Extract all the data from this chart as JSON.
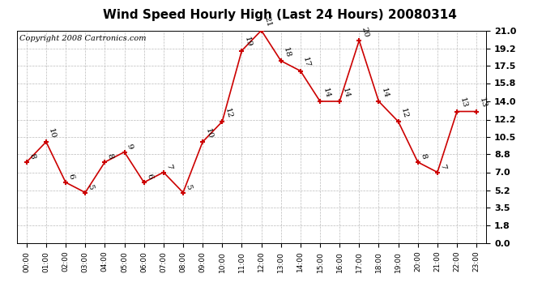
{
  "title": "Wind Speed Hourly High (Last 24 Hours) 20080314",
  "copyright": "Copyright 2008 Cartronics.com",
  "hours": [
    0,
    1,
    2,
    3,
    4,
    5,
    6,
    7,
    8,
    9,
    10,
    11,
    12,
    13,
    14,
    15,
    16,
    17,
    18,
    19,
    20,
    21,
    22,
    23
  ],
  "values": [
    8,
    10,
    6,
    5,
    8,
    9,
    6,
    7,
    5,
    10,
    12,
    19,
    21,
    18,
    17,
    14,
    14,
    20,
    14,
    12,
    8,
    7,
    13,
    13
  ],
  "x_labels": [
    "00:00",
    "01:00",
    "02:00",
    "03:00",
    "04:00",
    "05:00",
    "06:00",
    "07:00",
    "08:00",
    "09:00",
    "10:00",
    "11:00",
    "12:00",
    "13:00",
    "14:00",
    "15:00",
    "16:00",
    "17:00",
    "18:00",
    "19:00",
    "20:00",
    "21:00",
    "22:00",
    "23:00"
  ],
  "y_ticks": [
    0.0,
    1.8,
    3.5,
    5.2,
    7.0,
    8.8,
    10.5,
    12.2,
    14.0,
    15.8,
    17.5,
    19.2,
    21.0
  ],
  "y_tick_labels": [
    "0.0",
    "1.8",
    "3.5",
    "5.2",
    "7.0",
    "8.8",
    "10.5",
    "12.2",
    "14.0",
    "15.8",
    "17.5",
    "19.2",
    "21.0"
  ],
  "line_color": "#cc0000",
  "marker_color": "#cc0000",
  "bg_color": "#ffffff",
  "grid_color": "#bbbbbb",
  "title_fontsize": 11,
  "annotation_fontsize": 7.5,
  "copyright_fontsize": 7,
  "ytick_fontsize": 8,
  "xtick_fontsize": 6.5
}
